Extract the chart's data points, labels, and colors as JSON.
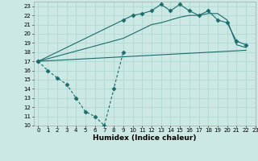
{
  "xlabel": "Humidex (Indice chaleur)",
  "xlim": [
    -0.5,
    23
  ],
  "ylim": [
    10,
    23.5
  ],
  "xticks": [
    0,
    1,
    2,
    3,
    4,
    5,
    6,
    7,
    8,
    9,
    10,
    11,
    12,
    13,
    14,
    15,
    16,
    17,
    18,
    19,
    20,
    21,
    22,
    23
  ],
  "yticks": [
    10,
    11,
    12,
    13,
    14,
    15,
    16,
    17,
    18,
    19,
    20,
    21,
    22,
    23
  ],
  "bg_color": "#cce8e4",
  "grid_color": "#b0d8d2",
  "line_color": "#1a6b6b",
  "line1_dashed": {
    "x": [
      0,
      1,
      2,
      3,
      4,
      5,
      6,
      7,
      8,
      9
    ],
    "y": [
      17,
      16,
      15.2,
      14.5,
      13,
      11.5,
      11,
      10,
      14,
      18
    ],
    "style": "--",
    "marker": "D",
    "ms": 2.5
  },
  "line2_upper": {
    "x": [
      0,
      9,
      10,
      11,
      12,
      13,
      14,
      15,
      16,
      17,
      18,
      19,
      20,
      21,
      22
    ],
    "y": [
      17,
      21.5,
      22,
      22.2,
      22.5,
      23.2,
      22.5,
      23.2,
      22.5,
      22,
      22.5,
      21.5,
      21.2,
      19.2,
      18.8
    ],
    "style": "-",
    "marker": "D",
    "ms": 2.5
  },
  "line3_lower": {
    "x": [
      0,
      9,
      10,
      11,
      12,
      13,
      14,
      15,
      16,
      17,
      18,
      19,
      20,
      21,
      22
    ],
    "y": [
      17,
      19.5,
      20,
      20.5,
      21,
      21.2,
      21.5,
      21.8,
      22,
      22,
      22.2,
      22.2,
      21.5,
      18.8,
      18.5
    ],
    "style": "-",
    "marker": null,
    "ms": 0
  },
  "line4_flat": {
    "x": [
      0,
      22
    ],
    "y": [
      17,
      18.2
    ],
    "style": "-",
    "marker": null,
    "ms": 0
  }
}
